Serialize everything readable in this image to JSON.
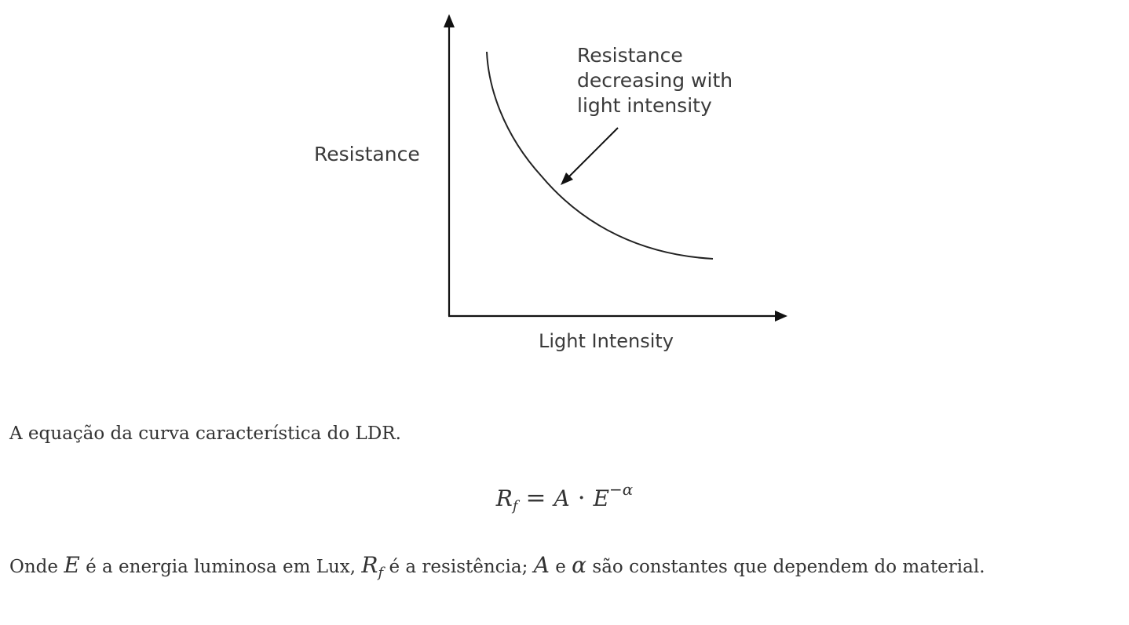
{
  "figure": {
    "ylabel": "Resistance",
    "xlabel": "Light Intensity",
    "annotation": [
      "Resistance",
      "decreasing with",
      "light intensity"
    ]
  },
  "text": {
    "intro": "A equação da curva característica do LDR.",
    "desc_1": "Onde ",
    "var_E": "E",
    "desc_2": " é a energia luminosa em Lux, ",
    "var_R": "R",
    "var_R_sub": "f",
    "desc_3": " é a resistência; ",
    "var_A": "A",
    "desc_4": " e ",
    "var_alpha": "α",
    "desc_5": " são constantes que dependem do material."
  },
  "equation": {
    "lhs": "R",
    "lhs_sub": "f",
    "eq": "=",
    "a": "A",
    "dot": "·",
    "e": "E",
    "exp": "−α"
  }
}
